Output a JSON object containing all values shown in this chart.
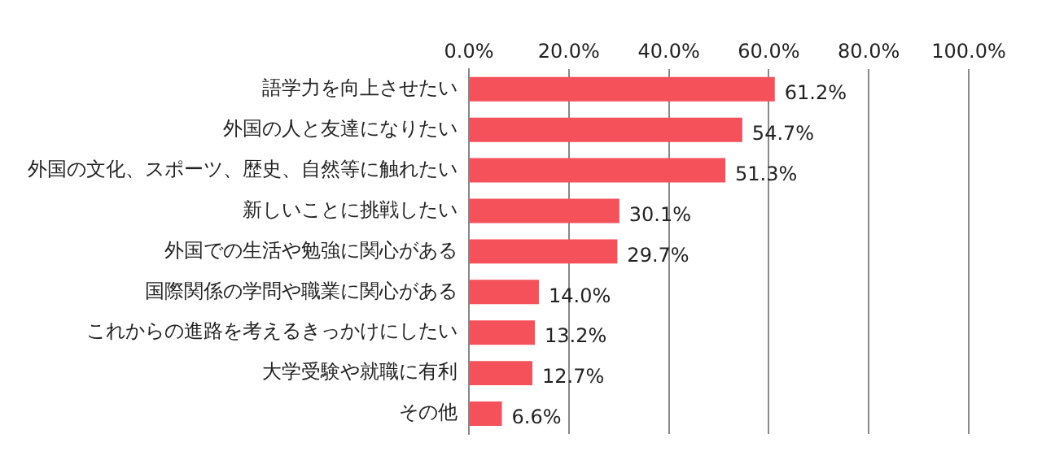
{
  "chart_data": {
    "type": "bar",
    "orientation": "horizontal",
    "categories": [
      "語学力を向上させたい",
      "外国の人と友達になりたい",
      "外国の文化、スポーツ、歴史、自然等に触れたい",
      "新しいことに挑戦したい",
      "外国での生活や勉強に関心がある",
      "国際関係の学問や職業に関心がある",
      "これからの進路を考えるきっかけにしたい",
      "大学受験や就職に有利",
      "その他"
    ],
    "values": [
      61.2,
      54.7,
      51.3,
      30.1,
      29.7,
      14.0,
      13.2,
      12.7,
      6.6
    ],
    "value_labels": [
      "61.2%",
      "54.7%",
      "51.3%",
      "30.1%",
      "29.7%",
      "14.0%",
      "13.2%",
      "12.7%",
      "6.6%"
    ],
    "color": "#f4515a",
    "xlim": [
      0,
      100
    ],
    "xticks": [
      {
        "value": 0,
        "label": "0.0%"
      },
      {
        "value": 20,
        "label": "20.0%"
      },
      {
        "value": 40,
        "label": "40.0%"
      },
      {
        "value": 60,
        "label": "60.0%"
      },
      {
        "value": 80,
        "label": "80.0%"
      },
      {
        "value": 100,
        "label": "100.0%"
      }
    ],
    "grid": "x"
  }
}
